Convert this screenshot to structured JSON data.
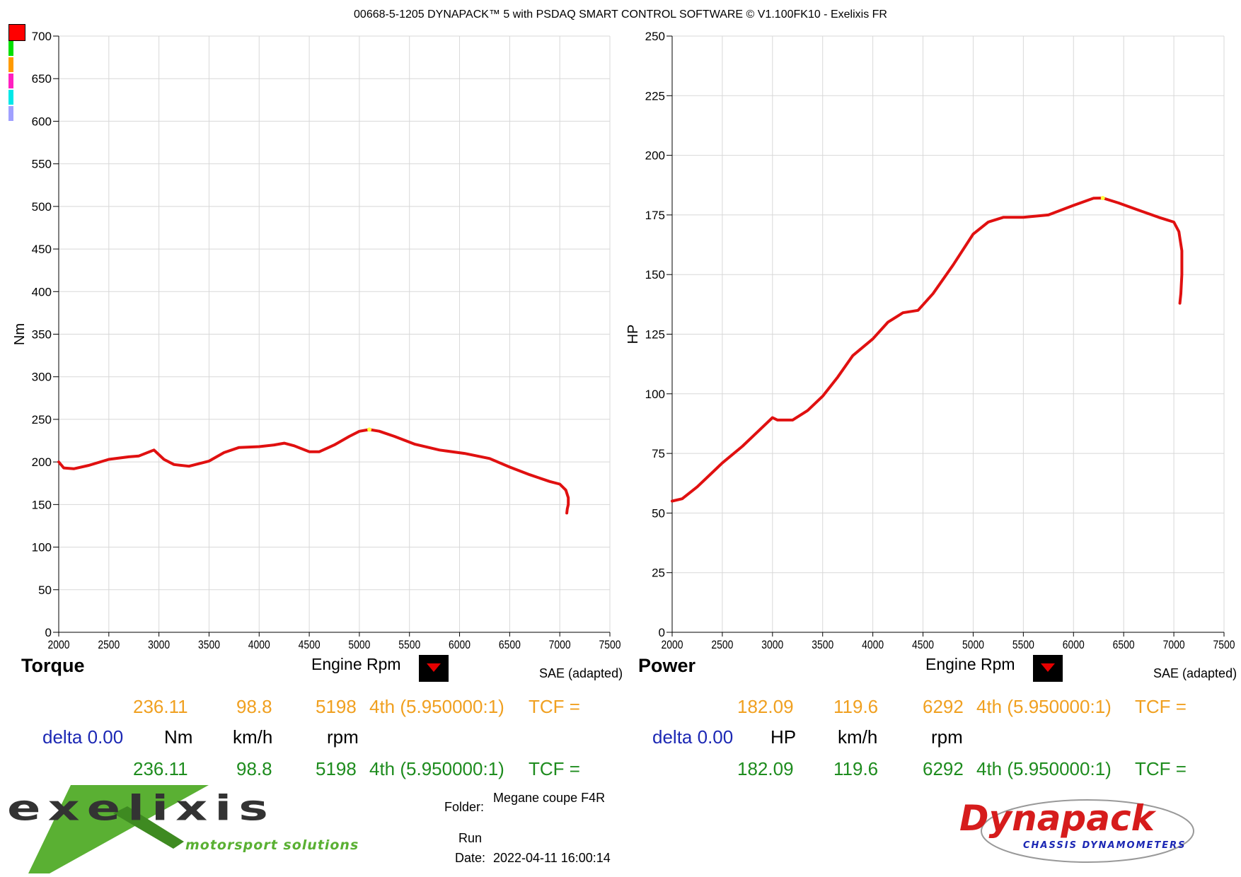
{
  "title": "00668-5-1205 DYNAPACK™ 5 with PSDAQ SMART CONTROL SOFTWARE © V1.100FK10 - Exelixis FR",
  "legend_colors": [
    "#ff0000",
    "#00e000",
    "#ff9a00",
    "#ff20c0",
    "#00e8e8",
    "#a0a0ff"
  ],
  "torque": {
    "label": "Torque",
    "xlabel": "Engine Rpm",
    "ylabel": "Nm",
    "correction": "SAE (adapted)",
    "row1": {
      "value": "236.11",
      "speed": "98.8",
      "rpm": "5198",
      "gear": "4th (5.950000:1)",
      "tcf": "TCF ="
    },
    "delta": "delta 0.00",
    "units": {
      "value": "Nm",
      "speed": "km/h",
      "rpm": "rpm"
    },
    "row2": {
      "value": "236.11",
      "speed": "98.8",
      "rpm": "5198",
      "gear": "4th (5.950000:1)",
      "tcf": "TCF ="
    }
  },
  "power": {
    "label": "Power",
    "xlabel": "Engine Rpm",
    "ylabel": "HP",
    "correction": "SAE (adapted)",
    "row1": {
      "value": "182.09",
      "speed": "119.6",
      "rpm": "6292",
      "gear": "4th (5.950000:1)",
      "tcf": "TCF ="
    },
    "delta": "delta 0.00",
    "units": {
      "value": "HP",
      "speed": "km/h",
      "rpm": "rpm"
    },
    "row2": {
      "value": "182.09",
      "speed": "119.6",
      "rpm": "6292",
      "gear": "4th (5.950000:1)",
      "tcf": "TCF ="
    }
  },
  "footer": {
    "folder_label": "Folder:",
    "folder_value": "Megane coupe F4R",
    "run_label": "Run",
    "date_label": "Date:",
    "date_value": "2022-04-11 16:00:14",
    "brand_left": "exelixis",
    "brand_left_sub": "motorsport solutions",
    "brand_right": "Dynapack",
    "brand_right_sub": "CHASSIS DYNAMOMETERS"
  },
  "chart_data": [
    {
      "type": "line",
      "ylabel": "Nm",
      "xlabel": "Engine Rpm",
      "xlim": [
        2000,
        7500
      ],
      "ylim": [
        0,
        700
      ],
      "xticks": [
        2000,
        2500,
        3000,
        3500,
        4000,
        4500,
        5000,
        5500,
        6000,
        6500,
        7000,
        7500
      ],
      "yticks": [
        0,
        50,
        100,
        150,
        200,
        250,
        300,
        350,
        400,
        450,
        500,
        550,
        600,
        650,
        700
      ],
      "grid": true,
      "series": [
        {
          "color": "#e01010",
          "x": [
            2000,
            2050,
            2150,
            2300,
            2500,
            2700,
            2800,
            2950,
            3050,
            3150,
            3300,
            3500,
            3650,
            3800,
            4000,
            4150,
            4250,
            4350,
            4500,
            4600,
            4750,
            4900,
            5000,
            5100,
            5198,
            5350,
            5550,
            5800,
            6050,
            6300,
            6500,
            6700,
            6900,
            7000,
            7060,
            7085,
            7085,
            7075,
            7070
          ],
          "y": [
            200,
            193,
            192,
            196,
            203,
            206,
            207,
            214,
            203,
            197,
            195,
            201,
            211,
            217,
            218,
            220,
            222,
            219,
            212,
            212,
            220,
            230,
            236,
            238,
            236.11,
            230,
            221,
            214,
            210,
            204,
            194,
            185,
            177,
            174,
            167,
            158,
            150,
            145,
            140
          ]
        }
      ]
    },
    {
      "type": "line",
      "ylabel": "HP",
      "xlabel": "Engine Rpm",
      "xlim": [
        2000,
        7500
      ],
      "ylim": [
        0,
        250
      ],
      "xticks": [
        2000,
        2500,
        3000,
        3500,
        4000,
        4500,
        5000,
        5500,
        6000,
        6500,
        7000,
        7500
      ],
      "yticks": [
        0,
        25,
        50,
        75,
        100,
        125,
        150,
        175,
        200,
        225,
        250
      ],
      "grid": true,
      "series": [
        {
          "color": "#e01010",
          "x": [
            2000,
            2100,
            2250,
            2500,
            2700,
            2850,
            3000,
            3050,
            3200,
            3350,
            3500,
            3650,
            3800,
            4000,
            4150,
            4300,
            4450,
            4600,
            4800,
            5000,
            5150,
            5300,
            5500,
            5750,
            6000,
            6200,
            6292,
            6450,
            6650,
            6850,
            7000,
            7050,
            7080,
            7080,
            7070,
            7060
          ],
          "y": [
            55,
            56,
            61,
            71,
            78,
            84,
            90,
            89,
            89,
            93,
            99,
            107,
            116,
            123,
            130,
            134,
            135,
            142,
            154,
            167,
            172,
            174,
            174,
            175,
            179,
            182,
            182.09,
            180,
            177,
            174,
            172,
            168,
            160,
            150,
            142,
            138
          ]
        }
      ]
    }
  ]
}
